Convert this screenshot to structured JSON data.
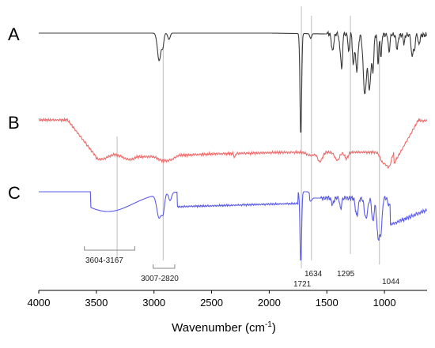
{
  "chart_data": {
    "type": "line",
    "title": "",
    "xlabel_main": "Wavenumber (cm",
    "xlabel_sup": "-1",
    "xlabel_close": ")",
    "ylabel": "",
    "xlim": [
      4000,
      630
    ],
    "x_reversed": true,
    "x_ticks": [
      "4000",
      "3500",
      "3000",
      "2500",
      "2000",
      "1500",
      "1000"
    ],
    "x_tick_values": [
      4000,
      3500,
      3000,
      2500,
      2000,
      1500,
      1000
    ],
    "grid": false,
    "legend": "none",
    "panels": [
      {
        "label": "A",
        "color": "#3a3a3a"
      },
      {
        "label": "B",
        "color": "#f06a6a"
      },
      {
        "label": "C",
        "color": "#5a5ae8"
      }
    ],
    "reference_lines": [
      {
        "x": 3320,
        "label": ""
      },
      {
        "x": 2920,
        "label": ""
      },
      {
        "x": 1721,
        "label": ""
      },
      {
        "x": 1634,
        "label": ""
      },
      {
        "x": 1295,
        "label": ""
      },
      {
        "x": 1044,
        "label": ""
      }
    ],
    "annotations": [
      {
        "text": "3604-3167",
        "range": [
          3604,
          3167
        ]
      },
      {
        "text": "3007-2820",
        "range": [
          3007,
          2820
        ]
      },
      {
        "text": "1721",
        "at": 1721
      },
      {
        "text": "1634",
        "at": 1634
      },
      {
        "text": "1295",
        "at": 1295
      },
      {
        "text": "1044",
        "at": 1044
      }
    ]
  }
}
